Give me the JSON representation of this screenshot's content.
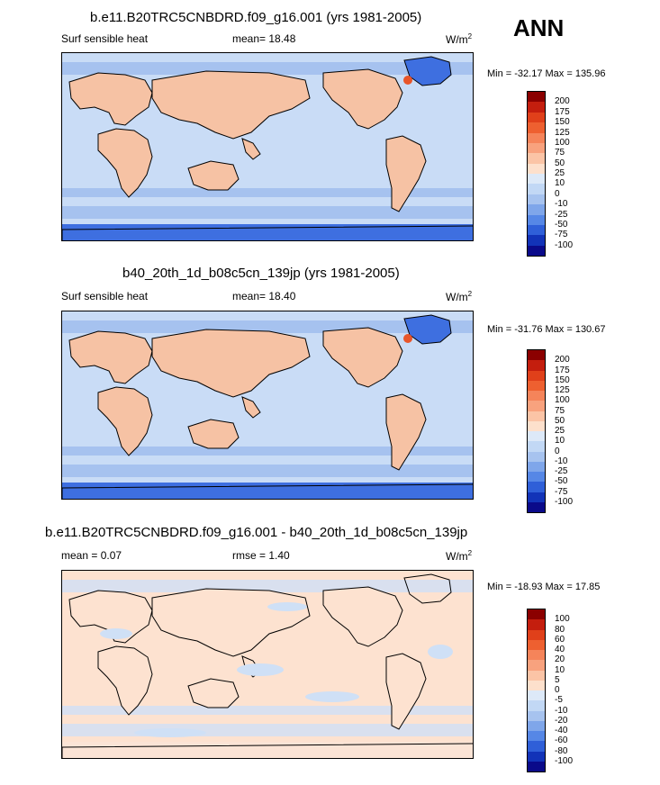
{
  "season": "ANN",
  "panels": [
    {
      "title": "b.e11.B20TRC5CNBDRD.f09_g16.001 (yrs 1981-2005)",
      "left_label": "Surf sensible heat",
      "center_label": "mean=  18.48",
      "units": "W/m",
      "units_exp": "2",
      "minmax": "Min = -32.17 Max = 135.96"
    },
    {
      "title": "b40_20th_1d_b08c5cn_139jp (yrs 1981-2005)",
      "left_label": "Surf sensible heat",
      "center_label": "mean=  18.40",
      "units": "W/m",
      "units_exp": "2",
      "minmax": "Min = -31.76 Max = 130.67"
    },
    {
      "title": "b.e11.B20TRC5CNBDRD.f09_g16.001 - b40_20th_1d_b08c5cn_139jp",
      "left_label": "mean =   0.07",
      "center_label": "rmse =   1.40",
      "units": "W/m",
      "units_exp": "2",
      "minmax": "Min = -18.93 Max =  17.85"
    }
  ],
  "chart_data": [
    {
      "type": "heatmap",
      "title": "b.e11.B20TRC5CNBDRD.f09_g16.001 (yrs 1981-2005)",
      "variable": "Surf sensible heat",
      "units": "W/m2",
      "mean": 18.48,
      "min": -32.17,
      "max": 135.96,
      "colorbar_levels": [
        "200",
        "175",
        "150",
        "125",
        "100",
        "75",
        "50",
        "25",
        "10",
        "0",
        "-10",
        "-25",
        "-50",
        "-75",
        "-100"
      ],
      "colorbar_colors": [
        "#8b0000",
        "#c41e0e",
        "#e0401a",
        "#ee6030",
        "#f5845a",
        "#f8a27e",
        "#fbc4a6",
        "#fde0cc",
        "#dde9f8",
        "#c2d8f5",
        "#a7c3ef",
        "#7fa6ea",
        "#5687e6",
        "#2f5fd8",
        "#1233b8",
        "#0a0a8a"
      ]
    },
    {
      "type": "heatmap",
      "title": "b40_20th_1d_b08c5cn_139jp (yrs 1981-2005)",
      "variable": "Surf sensible heat",
      "units": "W/m2",
      "mean": 18.4,
      "min": -31.76,
      "max": 130.67,
      "colorbar_levels": [
        "200",
        "175",
        "150",
        "125",
        "100",
        "75",
        "50",
        "25",
        "10",
        "0",
        "-10",
        "-25",
        "-50",
        "-75",
        "-100"
      ],
      "colorbar_colors": [
        "#8b0000",
        "#c41e0e",
        "#e0401a",
        "#ee6030",
        "#f5845a",
        "#f8a27e",
        "#fbc4a6",
        "#fde0cc",
        "#dde9f8",
        "#c2d8f5",
        "#a7c3ef",
        "#7fa6ea",
        "#5687e6",
        "#2f5fd8",
        "#1233b8",
        "#0a0a8a"
      ]
    },
    {
      "type": "heatmap",
      "title": "b.e11.B20TRC5CNBDRD.f09_g16.001 - b40_20th_1d_b08c5cn_139jp",
      "units": "W/m2",
      "mean": 0.07,
      "rmse": 1.4,
      "min": -18.93,
      "max": 17.85,
      "colorbar_levels": [
        "100",
        "80",
        "60",
        "40",
        "20",
        "10",
        "5",
        "0",
        "-5",
        "-10",
        "-20",
        "-40",
        "-60",
        "-80",
        "-100"
      ],
      "colorbar_colors": [
        "#8b0000",
        "#c41e0e",
        "#e0401a",
        "#ee6030",
        "#f5845a",
        "#f8a27e",
        "#fbc4a6",
        "#fde0cc",
        "#dde9f8",
        "#c2d8f5",
        "#a7c3ef",
        "#7fa6ea",
        "#5687e6",
        "#2f5fd8",
        "#1233b8",
        "#0a0a8a"
      ]
    }
  ]
}
